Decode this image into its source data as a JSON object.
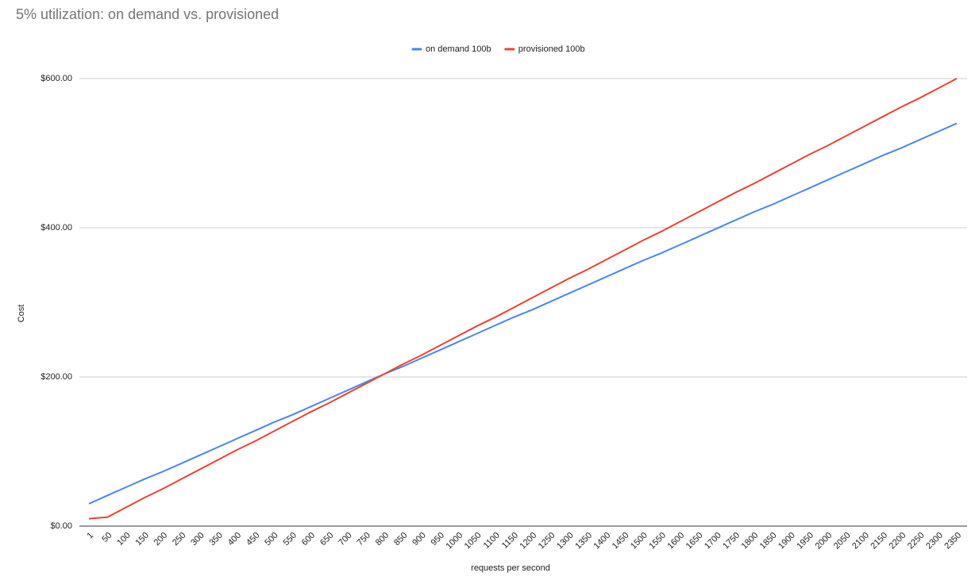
{
  "chart_data": {
    "type": "line",
    "title": "5% utilization: on demand vs. provisioned",
    "x_label": "requests per second",
    "y_label": "Cost",
    "categories": [
      "1",
      "50",
      "100",
      "150",
      "200",
      "250",
      "300",
      "350",
      "400",
      "450",
      "500",
      "550",
      "600",
      "650",
      "700",
      "750",
      "800",
      "850",
      "900",
      "950",
      "1000",
      "1050",
      "1100",
      "1150",
      "1200",
      "1250",
      "1300",
      "1350",
      "1400",
      "1450",
      "1500",
      "1550",
      "1600",
      "1650",
      "1700",
      "1750",
      "1800",
      "1850",
      "1900",
      "1950",
      "2000",
      "2050",
      "2100",
      "2150",
      "2200",
      "2250",
      "2300",
      "2350"
    ],
    "series": [
      {
        "name": "on demand 100b",
        "color": "#4a86e8",
        "values": [
          30,
          41,
          52,
          63,
          73,
          84,
          95,
          106,
          117,
          128,
          139,
          149,
          160,
          171,
          182,
          193,
          204,
          214,
          225,
          236,
          247,
          258,
          269,
          280,
          290,
          301,
          312,
          323,
          334,
          345,
          356,
          366,
          377,
          388,
          399,
          410,
          421,
          431,
          442,
          453,
          464,
          475,
          486,
          497,
          507,
          518,
          529,
          540
        ]
      },
      {
        "name": "provisioned 100b",
        "color": "#ea4335",
        "values": [
          10,
          12,
          25,
          38,
          50,
          63,
          76,
          89,
          102,
          114,
          127,
          140,
          153,
          165,
          178,
          191,
          204,
          217,
          229,
          242,
          255,
          268,
          280,
          293,
          306,
          319,
          332,
          344,
          357,
          370,
          383,
          395,
          408,
          421,
          434,
          447,
          459,
          472,
          485,
          498,
          510,
          523,
          536,
          549,
          562,
          574,
          587,
          600
        ]
      }
    ],
    "ylim": [
      0,
      600
    ],
    "yticks": [
      {
        "value": 0,
        "label": "$0.00"
      },
      {
        "value": 200,
        "label": "$200.00"
      },
      {
        "value": 400,
        "label": "$400.00"
      },
      {
        "value": 600,
        "label": "$600.00"
      }
    ],
    "grid": true,
    "legend": "top"
  }
}
